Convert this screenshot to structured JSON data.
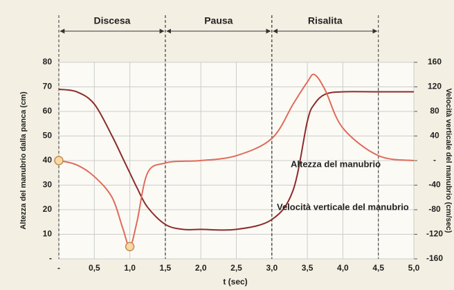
{
  "chart_data": {
    "type": "line",
    "xlabel": "t (sec)",
    "ylabel": "Altezza del manubrio dalla panca (cm)",
    "y2label": "Velocità verticale del manubrio (cm/sec)",
    "phases": [
      {
        "label": "Discesa",
        "start": 0,
        "end": 1.5
      },
      {
        "label": "Pausa",
        "start": 1.5,
        "end": 3.0
      },
      {
        "label": "Risalita",
        "start": 3.0,
        "end": 4.5
      }
    ],
    "annotations": [
      "Altezza del manubrio",
      "Velocità verticale del manubrio"
    ],
    "x": [
      0,
      0.25,
      0.5,
      0.75,
      0.9,
      1.0,
      1.1,
      1.25,
      1.5,
      1.75,
      2.0,
      2.5,
      3.0,
      3.3,
      3.5,
      3.6,
      3.75,
      4.0,
      4.5,
      5.0
    ],
    "series": [
      {
        "name": "Altezza del manubrio",
        "color": "#8b2a2a",
        "axis": "y",
        "values": [
          69,
          68,
          63,
          50,
          41,
          35,
          29,
          21,
          14,
          12,
          12,
          12,
          16,
          28,
          56,
          63,
          67,
          68,
          68,
          68
        ]
      },
      {
        "name": "Velocità verticale del manubrio",
        "color": "#e06a5a",
        "axis": "y2",
        "values": [
          0,
          -7,
          -26,
          -60,
          -110,
          -140,
          -100,
          -20,
          -4,
          -1,
          0,
          8,
          36,
          92,
          128,
          140,
          115,
          53,
          8,
          0
        ]
      }
    ],
    "xlim": [
      0,
      5
    ],
    "xticks": [
      {
        "value": 0,
        "label": "-"
      },
      {
        "value": 0.5,
        "label": "0,5"
      },
      {
        "value": 1.0,
        "label": "1,0"
      },
      {
        "value": 1.5,
        "label": "1,5"
      },
      {
        "value": 2.0,
        "label": "2,0"
      },
      {
        "value": 2.5,
        "label": "2,5"
      },
      {
        "value": 3.0,
        "label": "3,0"
      },
      {
        "value": 3.5,
        "label": "3,5"
      },
      {
        "value": 4.0,
        "label": "4,0"
      },
      {
        "value": 4.5,
        "label": "4,5"
      },
      {
        "value": 5.0,
        "label": "5,0"
      }
    ],
    "ylim": [
      0,
      80
    ],
    "yticks": [
      {
        "value": 0,
        "label": "-"
      },
      10,
      20,
      30,
      40,
      50,
      60,
      70,
      80
    ],
    "y2lim": [
      -160,
      160
    ],
    "y2ticks": [
      -160,
      -120,
      -80,
      -40,
      {
        "value": 0,
        "label": "-"
      },
      40,
      80,
      120,
      160
    ],
    "grid": true
  }
}
